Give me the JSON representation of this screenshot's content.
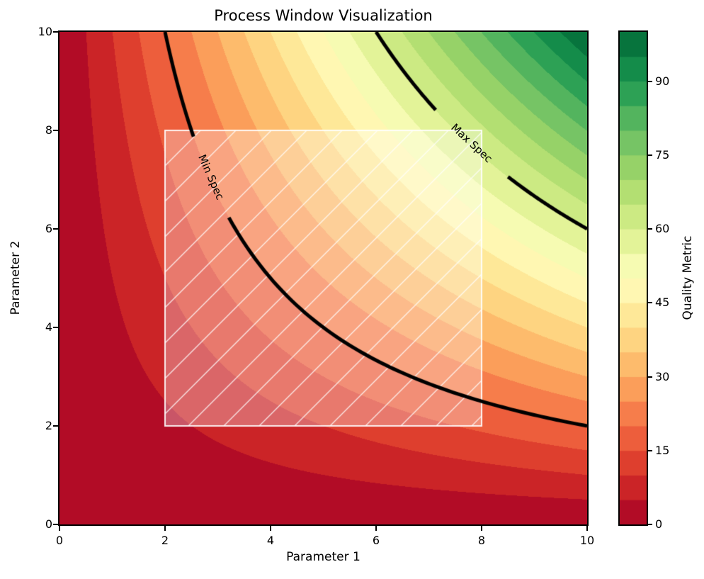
{
  "title": "Process Window Visualization",
  "chart_data": {
    "type": "heatmap",
    "subtype": "filled-contour",
    "title": "Process Window Visualization",
    "xlabel": "Parameter 1",
    "ylabel": "Parameter 2",
    "xlim": [
      0,
      10
    ],
    "ylim": [
      0,
      10
    ],
    "x_ticks": [
      0,
      2,
      4,
      6,
      8,
      10
    ],
    "y_ticks": [
      0,
      2,
      4,
      6,
      8,
      10
    ],
    "z_function": "quality = parameter1 * parameter2",
    "z_levels": {
      "min": 0,
      "max": 100,
      "step": 5,
      "n_bands": 20
    },
    "grid": false,
    "colormap": {
      "name": "RdYlGn",
      "anchors": [
        "#a50026",
        "#d73027",
        "#f46d43",
        "#fdae61",
        "#fee08b",
        "#ffffbf",
        "#d9ef8b",
        "#a6d96a",
        "#66bd63",
        "#1a9850",
        "#006837"
      ]
    },
    "colorbar": {
      "label": "Quality Metric",
      "ticks": [
        0,
        15,
        30,
        45,
        60,
        75,
        90
      ],
      "min": 0,
      "max": 100,
      "position": "right"
    },
    "contour_lines": [
      {
        "level": 20,
        "label": "Min Spec",
        "color": "#000000",
        "label_gap_x": [
          2.54,
          3.21
        ]
      },
      {
        "level": 60,
        "label": "Max Spec",
        "color": "#000000",
        "label_gap_x": [
          7.13,
          8.5
        ]
      }
    ],
    "process_window": {
      "x_range": [
        2,
        8
      ],
      "y_range": [
        2,
        8
      ],
      "hatch": "/",
      "fill_color": "rgba(255,255,255,0.30)",
      "hatch_color": "rgba(255,255,255,0.80)",
      "edge_color": "rgba(255,255,255,0.90)"
    }
  }
}
